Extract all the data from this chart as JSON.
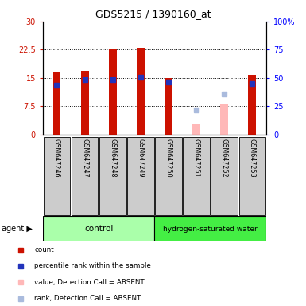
{
  "title": "GDS5215 / 1390160_at",
  "samples": [
    "GSM647246",
    "GSM647247",
    "GSM647248",
    "GSM647249",
    "GSM647250",
    "GSM647251",
    "GSM647252",
    "GSM647253"
  ],
  "red_values": [
    16.7,
    16.8,
    22.6,
    23.0,
    14.9,
    null,
    null,
    15.8
  ],
  "blue_values": [
    13.0,
    14.5,
    14.5,
    15.2,
    14.0,
    null,
    null,
    13.5
  ],
  "absent_red": [
    null,
    null,
    null,
    null,
    null,
    2.8,
    8.1,
    null
  ],
  "absent_blue": [
    null,
    null,
    null,
    null,
    null,
    6.5,
    10.8,
    null
  ],
  "is_absent": [
    false,
    false,
    false,
    false,
    false,
    true,
    true,
    false
  ],
  "ylim_left": [
    0,
    30
  ],
  "ylim_right": [
    0,
    100
  ],
  "yticks_left": [
    0,
    7.5,
    15,
    22.5,
    30
  ],
  "yticks_right": [
    0,
    25,
    50,
    75,
    100
  ],
  "ytick_labels_left": [
    "0",
    "7.5",
    "15",
    "22.5",
    "30"
  ],
  "ytick_labels_right": [
    "0",
    "25",
    "50",
    "75",
    "100%"
  ],
  "bar_width": 0.28,
  "red_color": "#CC1100",
  "blue_color": "#2233BB",
  "pink_color": "#FFB8B8",
  "light_blue_color": "#AABBDD",
  "control_bg": "#AAFFAA",
  "hsw_bg": "#44EE44",
  "sample_bg": "#CCCCCC",
  "group_control_label": "control",
  "group_hsw_label": "hydrogen-saturated water",
  "agent_label": "agent",
  "legend_items": [
    {
      "color": "#CC1100",
      "label": "count"
    },
    {
      "color": "#2233BB",
      "label": "percentile rank within the sample"
    },
    {
      "color": "#FFB8B8",
      "label": "value, Detection Call = ABSENT"
    },
    {
      "color": "#AABBDD",
      "label": "rank, Detection Call = ABSENT"
    }
  ]
}
